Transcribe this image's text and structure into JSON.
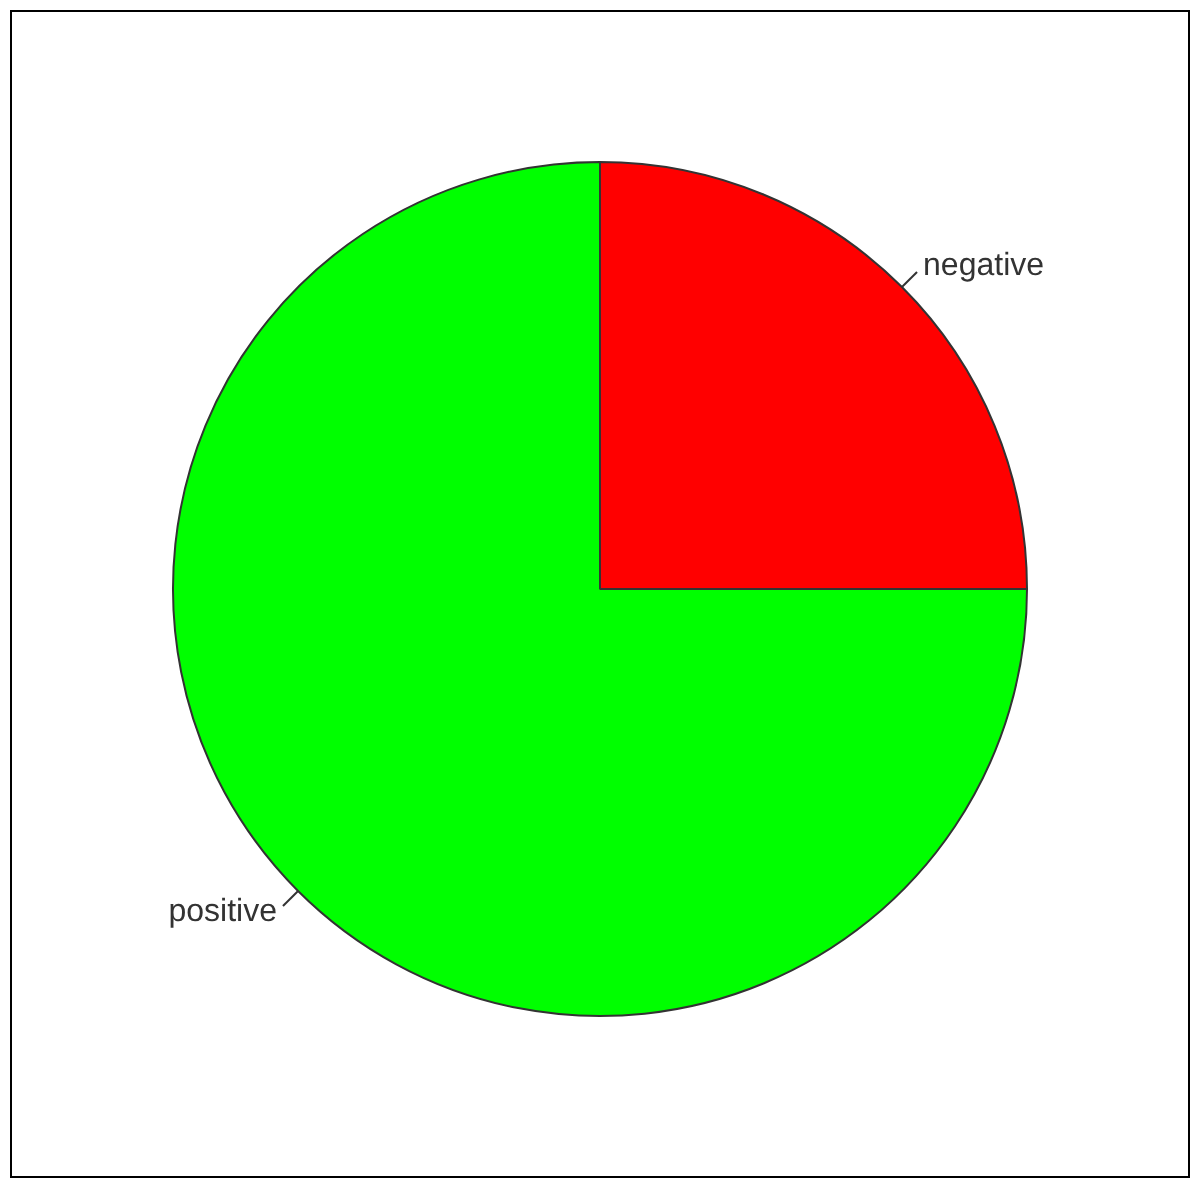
{
  "chart_data": {
    "type": "pie",
    "categories": [
      "negative",
      "positive"
    ],
    "values": [
      25,
      75
    ],
    "colors": [
      "#ff0000",
      "#00ff00"
    ],
    "legend": false
  }
}
